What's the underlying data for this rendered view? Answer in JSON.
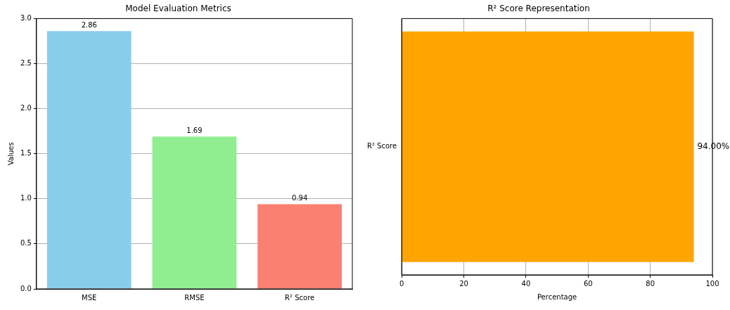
{
  "chart_data": [
    {
      "type": "bar",
      "title": "Model Evaluation Metrics",
      "ylabel": "Values",
      "categories": [
        "MSE",
        "RMSE",
        "R² Score"
      ],
      "values": [
        2.86,
        1.69,
        0.94
      ],
      "colors": [
        "#87ceeb",
        "#90ee90",
        "#fa8072"
      ],
      "ylim": [
        0,
        3
      ],
      "yticks": [
        {
          "value": 0,
          "label": "0.0"
        },
        {
          "value": 0.5,
          "label": "0.5"
        },
        {
          "value": 1,
          "label": "1.0"
        },
        {
          "value": 1.5,
          "label": "1.5"
        },
        {
          "value": 2,
          "label": "2.0"
        },
        {
          "value": 2.5,
          "label": "2.5"
        },
        {
          "value": 3,
          "label": "3.0"
        }
      ],
      "grid": "y",
      "data_labels": true
    },
    {
      "type": "bar",
      "orientation": "horizontal",
      "title": "R² Score Representation",
      "xlabel": "Percentage",
      "categories": [
        "R² Score"
      ],
      "values": [
        94
      ],
      "color": "#ffa500",
      "xlim": [
        0,
        100
      ],
      "xticks": [
        0,
        20,
        40,
        60,
        80,
        100
      ],
      "grid": "x",
      "value_labels": [
        "94.00%"
      ]
    }
  ]
}
